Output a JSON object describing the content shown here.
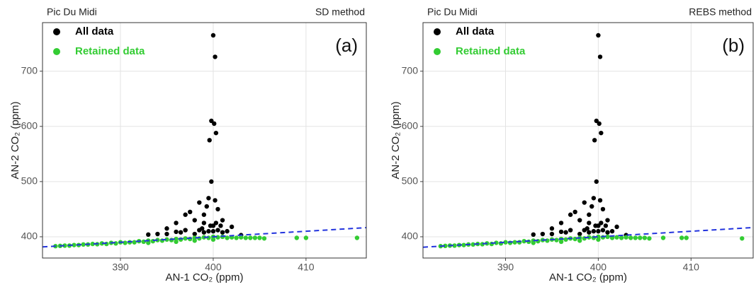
{
  "chart_data": [
    {
      "type": "scatter",
      "title": "Pic Du Midi",
      "subtitle": "SD method",
      "annotation": "(a)",
      "x_label": "AN-1 CO₂ (ppm)",
      "y_label": "AN-2 CO₂ (ppm)",
      "xlim": [
        381.6,
        416.5
      ],
      "ylim": [
        361.5,
        788
      ],
      "xticks": [
        390,
        400,
        410
      ],
      "yticks": [
        400,
        500,
        600,
        700
      ],
      "grid": true,
      "series": [
        {
          "name": "All data",
          "color": "#000000",
          "x": [
            400,
            400.2,
            399.8,
            400.1,
            400.3,
            399.6,
            399.8,
            399.5,
            398.5,
            400.2,
            397.5,
            399,
            400.5,
            401,
            396,
            398,
            402,
            395,
            393,
            397,
            400,
            399,
            398.8,
            401.5,
            396.5,
            394,
            399.5,
            400.8,
            398,
            397,
            399.3,
            395,
            396,
            398.5,
            399,
            400,
            400.5,
            401,
            403,
            399.7,
            400.3
          ],
          "values": [
            765,
            726,
            610,
            605,
            588,
            575,
            500,
            470,
            462,
            466,
            445,
            440,
            450,
            430,
            425,
            430,
            418,
            415,
            404,
            412,
            420,
            425,
            415,
            410,
            408,
            405,
            410,
            420,
            405,
            440,
            455,
            405,
            409,
            412,
            408,
            410,
            412,
            408,
            403,
            420,
            425
          ]
        },
        {
          "name": "Retained data",
          "color": "#33cc33",
          "x": [
            383,
            383.5,
            384,
            384.5,
            385,
            385.5,
            386,
            386.5,
            387,
            387.5,
            388,
            388.5,
            389,
            389.5,
            390,
            390.5,
            391,
            391.5,
            392,
            392.5,
            393,
            393.5,
            394,
            394.5,
            395,
            395.5,
            396,
            396.5,
            397,
            397.5,
            398,
            398.5,
            399,
            399.5,
            400,
            400.5,
            401,
            401.5,
            402,
            402.5,
            403,
            403.5,
            404,
            404.5,
            405,
            405.5,
            409,
            410,
            415.5,
            396,
            393,
            398,
            400
          ],
          "values": [
            383,
            383.5,
            384,
            384,
            385,
            385,
            386,
            386,
            387,
            386.5,
            388,
            387,
            389,
            388,
            390,
            389,
            390,
            390,
            392,
            391,
            393,
            392,
            394,
            393,
            395,
            394,
            396,
            395,
            397,
            396,
            398,
            397,
            399,
            398,
            400,
            399,
            400,
            398,
            399,
            398,
            399,
            398,
            398,
            398,
            398,
            397,
            398,
            398,
            398,
            391,
            389,
            393,
            395
          ]
        }
      ],
      "reference_line": {
        "x": [
          381.6,
          416.5
        ],
        "values": [
          381.6,
          416.5
        ],
        "color": "#2233dd"
      }
    },
    {
      "type": "scatter",
      "title": "Pic Du Midi",
      "subtitle": "REBS method",
      "annotation": "(b)",
      "x_label": "AN-1 CO₂ (ppm)",
      "y_label": "AN-2 CO₂ (ppm)",
      "xlim": [
        381.1,
        416.7
      ],
      "ylim": [
        361.5,
        788
      ],
      "xticks": [
        390,
        400,
        410
      ],
      "yticks": [
        400,
        500,
        600,
        700
      ],
      "grid": true,
      "series": [
        {
          "name": "All data",
          "color": "#000000",
          "x": [
            400,
            400.2,
            399.8,
            400.1,
            400.3,
            399.6,
            399.8,
            399.5,
            398.5,
            400.2,
            397.5,
            399,
            400.5,
            401,
            396,
            398,
            402,
            395,
            393,
            397,
            400,
            399,
            398.8,
            401.5,
            396.5,
            394,
            399.5,
            400.8,
            398,
            397,
            399.3,
            395,
            396,
            398.5,
            399,
            400,
            400.5,
            401,
            403,
            399.7,
            400.3
          ],
          "values": [
            765,
            726,
            610,
            605,
            588,
            575,
            500,
            470,
            462,
            466,
            445,
            440,
            450,
            430,
            425,
            430,
            418,
            415,
            404,
            412,
            420,
            425,
            415,
            410,
            408,
            405,
            410,
            420,
            405,
            440,
            455,
            405,
            409,
            412,
            408,
            410,
            412,
            408,
            403,
            420,
            425
          ]
        },
        {
          "name": "Retained data",
          "color": "#33cc33",
          "x": [
            383,
            383.5,
            384,
            384.5,
            385,
            385.5,
            386,
            386.5,
            387,
            387.5,
            388,
            388.5,
            389,
            389.5,
            390,
            390.5,
            391,
            391.5,
            392,
            392.5,
            393,
            393.5,
            394,
            394.5,
            395,
            395.5,
            396,
            396.5,
            397,
            397.5,
            398,
            398.5,
            399,
            399.5,
            400,
            400.5,
            401,
            401.5,
            402,
            402.5,
            403,
            403.5,
            404,
            404.5,
            405,
            405.5,
            407,
            409,
            409.5,
            415.5,
            396,
            393,
            398,
            400
          ],
          "values": [
            383,
            383.5,
            384,
            384,
            385,
            385,
            386,
            386,
            387,
            386.5,
            388,
            387,
            389,
            388,
            390,
            389,
            390,
            390,
            392,
            391,
            393,
            392,
            394,
            393,
            395,
            394,
            396,
            395,
            397,
            396,
            398,
            397,
            399,
            398,
            400,
            399,
            400,
            398,
            399,
            398,
            399,
            398,
            398,
            398,
            398,
            397,
            398,
            398,
            398,
            397,
            391,
            389,
            393,
            395
          ]
        }
      ],
      "reference_line": {
        "x": [
          381.1,
          416.7
        ],
        "values": [
          381.1,
          416.7
        ],
        "color": "#2233dd"
      }
    }
  ]
}
